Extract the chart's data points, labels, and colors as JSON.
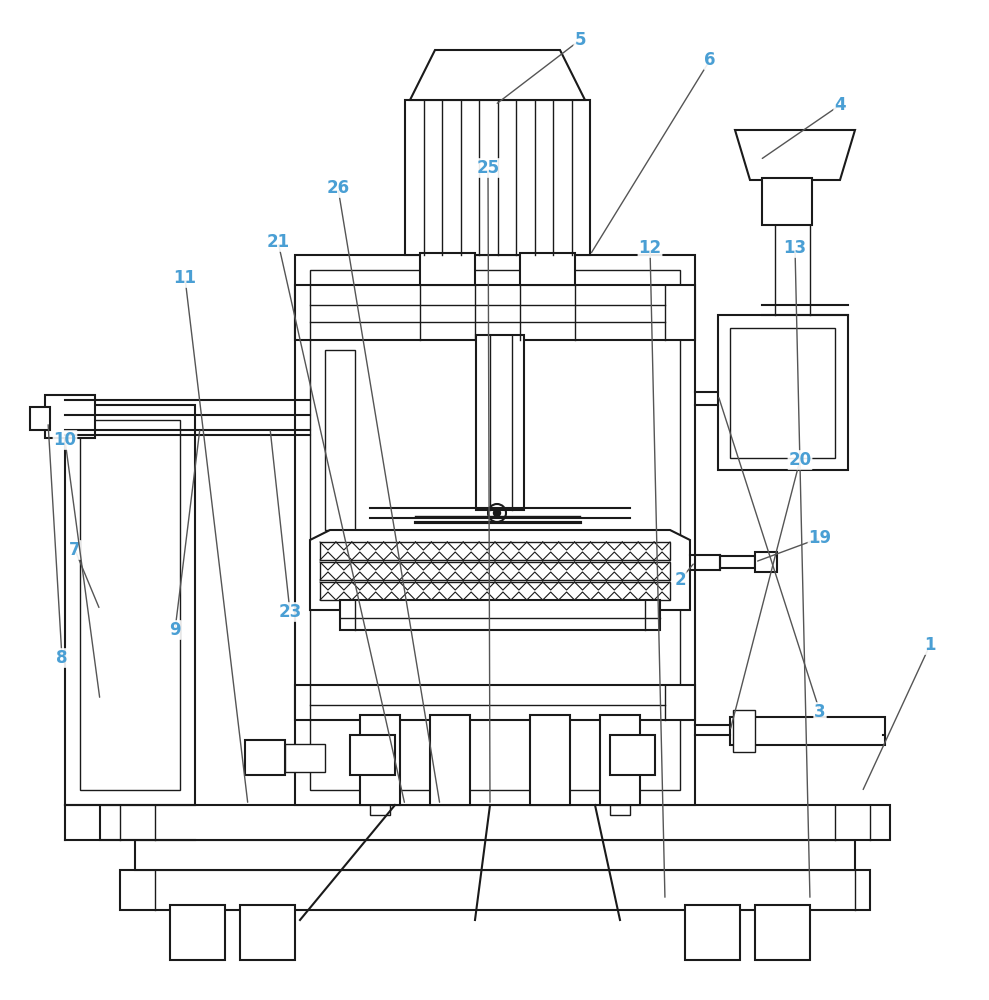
{
  "bg_color": "#ffffff",
  "line_color": "#1a1a1a",
  "label_color": "#4a9fd4",
  "label_fontsize": 12,
  "line_width": 1.5,
  "thin_lw": 1.0
}
